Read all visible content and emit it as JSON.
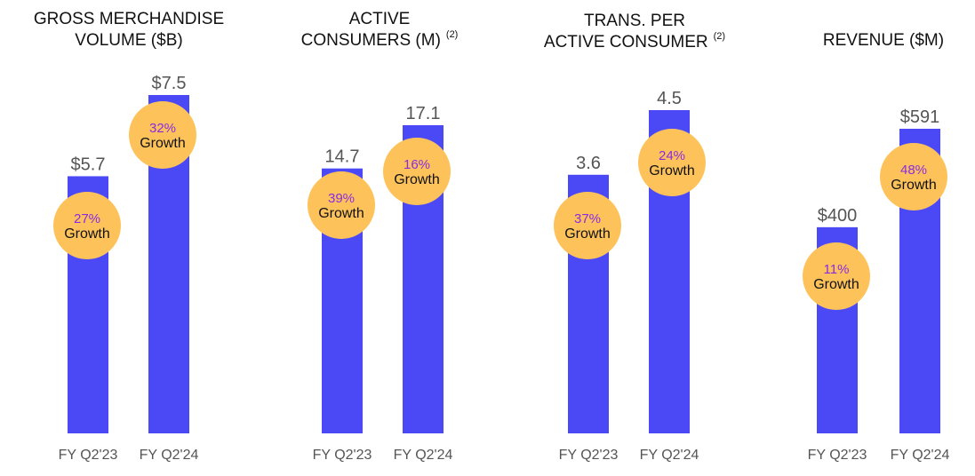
{
  "colors": {
    "bar": "#4b48f5",
    "bubble": "#fdc35a",
    "pct_text": "#8a2be2"
  },
  "chart_data": [
    {
      "type": "bar",
      "title_lines": [
        "GROSS MERCHANDISE",
        "VOLUME ($B)"
      ],
      "footnote": "",
      "categories": [
        "FY Q2'23",
        "FY Q2'24"
      ],
      "values": [
        5.7,
        7.5
      ],
      "value_labels": [
        "$5.7",
        "$7.5"
      ],
      "growth": [
        {
          "pct": "27%",
          "label": "Growth"
        },
        {
          "pct": "32%",
          "label": "Growth"
        }
      ]
    },
    {
      "type": "bar",
      "title_lines": [
        "ACTIVE",
        "CONSUMERS (M)"
      ],
      "footnote": "(2)",
      "categories": [
        "FY Q2'23",
        "FY Q2'24"
      ],
      "values": [
        14.7,
        17.1
      ],
      "value_labels": [
        "14.7",
        "17.1"
      ],
      "growth": [
        {
          "pct": "39%",
          "label": "Growth"
        },
        {
          "pct": "16%",
          "label": "Growth"
        }
      ]
    },
    {
      "type": "bar",
      "title_lines": [
        "TRANS. PER",
        "ACTIVE CONSUMER"
      ],
      "footnote": "(2)",
      "categories": [
        "FY Q2'23",
        "FY Q2'24"
      ],
      "values": [
        3.6,
        4.5
      ],
      "value_labels": [
        "3.6",
        "4.5"
      ],
      "growth": [
        {
          "pct": "37%",
          "label": "Growth"
        },
        {
          "pct": "24%",
          "label": "Growth"
        }
      ]
    },
    {
      "type": "bar",
      "title_lines": [
        "",
        "REVENUE ($M)"
      ],
      "footnote": "",
      "categories": [
        "FY Q2'23",
        "FY Q2'24"
      ],
      "values": [
        400,
        591
      ],
      "value_labels": [
        "$400",
        "$591"
      ],
      "growth": [
        {
          "pct": "11%",
          "label": "Growth"
        },
        {
          "pct": "48%",
          "label": "Growth"
        }
      ]
    }
  ]
}
